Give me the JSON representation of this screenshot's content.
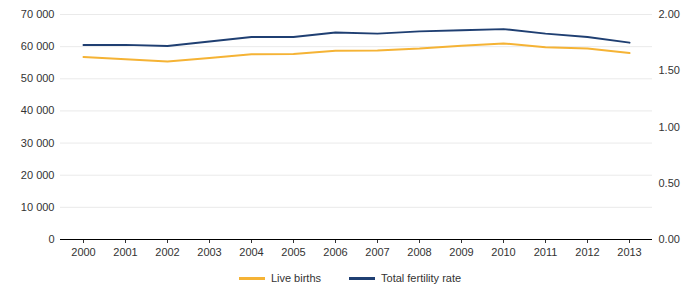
{
  "chart_data": {
    "type": "line",
    "categories": [
      "2000",
      "2001",
      "2002",
      "2003",
      "2004",
      "2005",
      "2006",
      "2007",
      "2008",
      "2009",
      "2010",
      "2011",
      "2012",
      "2013"
    ],
    "series": [
      {
        "name": "Live births",
        "color": "#f5b335",
        "values": [
          56800,
          56100,
          55400,
          56500,
          57600,
          57700,
          58700,
          58800,
          59400,
          60300,
          61000,
          59800,
          59400,
          58000
        ]
      },
      {
        "name": "Total fertility rate",
        "color": "#1f3f72",
        "axis": "y2",
        "values": [
          1.73,
          1.73,
          1.72,
          1.76,
          1.8,
          1.8,
          1.84,
          1.83,
          1.85,
          1.86,
          1.87,
          1.83,
          1.8,
          1.75
        ]
      }
    ],
    "ylim": [
      0,
      70000
    ],
    "yticks": [
      0,
      {
        "value": 10000,
        "label": "10 000"
      },
      {
        "value": 20000,
        "label": "20 000"
      },
      {
        "value": 30000,
        "label": "30 000"
      },
      {
        "value": 40000,
        "label": "40 000"
      },
      {
        "value": 50000,
        "label": "50 000"
      },
      {
        "value": 60000,
        "label": "60 000"
      },
      {
        "value": 70000,
        "label": "70 000"
      }
    ],
    "y2lim": [
      0,
      2
    ],
    "y2ticks": [
      {
        "value": 0,
        "label": "0.00"
      },
      {
        "value": 0.5,
        "label": "0.50"
      },
      {
        "value": 1,
        "label": "1.00"
      },
      {
        "value": 1.5,
        "label": "1.50"
      },
      {
        "value": 2,
        "label": "2.00"
      }
    ],
    "grid": true,
    "legend": "bottom"
  }
}
